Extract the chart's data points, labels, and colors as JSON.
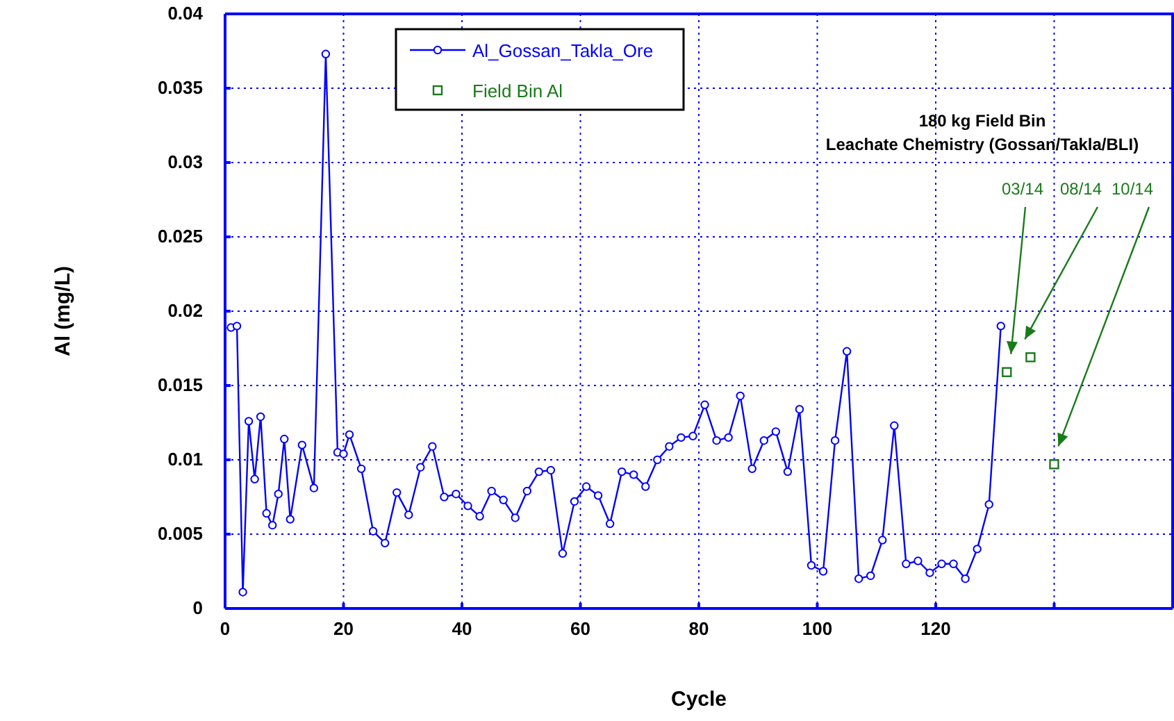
{
  "chart_data": {
    "type": "line",
    "xlabel": "Cycle",
    "ylabel": "Al (mg/L)",
    "xlim": [
      0,
      160
    ],
    "xticks": [
      0,
      20,
      40,
      60,
      80,
      100,
      120,
      {
        "value": 140,
        "label": null
      },
      {
        "value": 160,
        "label": null
      }
    ],
    "ylim": [
      0,
      0.04
    ],
    "yticks": [
      0,
      0.005,
      0.01,
      0.015,
      0.02,
      0.025,
      0.03,
      0.035,
      0.04
    ],
    "grid": true,
    "legend": "top left",
    "series": [
      {
        "name": "Al_Gossan_Takla_Ore",
        "type": "line",
        "marker": "circle",
        "line_style": "solid",
        "color": "#0000ff",
        "x": [
          1,
          2,
          3,
          4,
          5,
          6,
          7,
          8,
          9,
          10,
          11,
          13,
          15,
          17,
          19,
          20,
          21,
          23,
          25,
          27,
          29,
          31,
          33,
          35,
          37,
          39,
          41,
          43,
          45,
          47,
          49,
          51,
          53,
          55,
          57,
          59,
          61,
          63,
          65,
          67,
          69,
          71,
          73,
          75,
          77,
          79,
          81,
          83,
          85,
          87,
          89,
          91,
          93,
          95,
          97,
          99,
          101,
          103,
          105,
          107,
          109,
          111,
          113,
          115,
          117,
          119,
          121,
          123,
          125,
          127,
          129,
          131
        ],
        "values": [
          0.0189,
          0.019,
          0.0011,
          0.0126,
          0.0087,
          0.0129,
          0.0064,
          0.0056,
          0.0077,
          0.0114,
          0.006,
          0.011,
          0.0081,
          0.0373,
          0.0105,
          0.0104,
          0.0117,
          0.0094,
          0.0052,
          0.0044,
          0.0078,
          0.0063,
          0.0095,
          0.0109,
          0.0075,
          0.0077,
          0.0069,
          0.0062,
          0.0079,
          0.0073,
          0.0061,
          0.0079,
          0.0092,
          0.0093,
          0.0037,
          0.0072,
          0.0082,
          0.0076,
          0.0057,
          0.0092,
          0.009,
          0.0082,
          0.01,
          0.0109,
          0.0115,
          0.0116,
          0.0137,
          0.0113,
          0.0115,
          0.0143,
          0.0094,
          0.0113,
          0.0119,
          0.0092,
          0.0134,
          0.0029,
          0.0025,
          0.0113,
          0.0173,
          0.002,
          0.0022,
          0.0046,
          0.0123,
          0.003,
          0.0032,
          0.0024,
          0.003,
          0.003,
          0.002,
          0.004,
          0.007,
          0.019
        ]
      },
      {
        "name": "Field Bin Al",
        "type": "scatter",
        "marker": "square",
        "color": "#1a7a1a",
        "x": [
          132,
          136,
          140
        ],
        "values": [
          0.0159,
          0.0169,
          0.0097
        ]
      }
    ],
    "annotations": [
      "180 kg Field Bin",
      "Leachate Chemistry (Gossan/Takla/BLI)",
      "03/14",
      "08/14",
      "10/14"
    ]
  }
}
